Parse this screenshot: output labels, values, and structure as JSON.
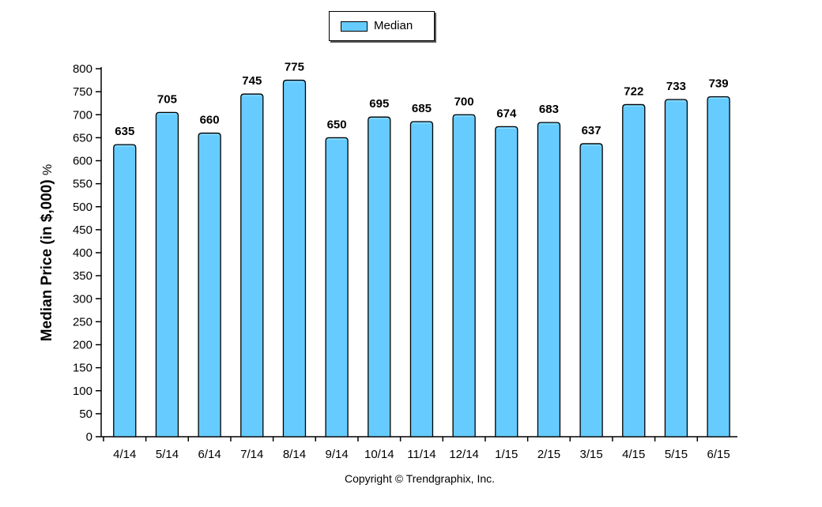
{
  "legend": {
    "label": "Median",
    "color": "#66ccff"
  },
  "footer": {
    "copyright": "Copyright © Trendgraphix, Inc."
  },
  "chart_data": {
    "type": "bar",
    "title": "",
    "xlabel": "",
    "ylabel": "Median Price (in $,000)",
    "ylabel_unit": "%",
    "categories": [
      "4/14",
      "5/14",
      "6/14",
      "7/14",
      "8/14",
      "9/14",
      "10/14",
      "11/14",
      "12/14",
      "1/15",
      "2/15",
      "3/15",
      "4/15",
      "5/15",
      "6/15"
    ],
    "series": [
      {
        "name": "Median",
        "values": [
          635,
          705,
          660,
          745,
          775,
          650,
          695,
          685,
          700,
          674,
          683,
          637,
          722,
          733,
          739
        ],
        "color": "#66ccff"
      }
    ],
    "ylim": [
      0,
      800
    ],
    "yticks": [
      0,
      50,
      100,
      150,
      200,
      250,
      300,
      350,
      400,
      450,
      500,
      550,
      600,
      650,
      700,
      750,
      800
    ],
    "grid": false,
    "legend_position": "top-center",
    "data_labels": true
  }
}
